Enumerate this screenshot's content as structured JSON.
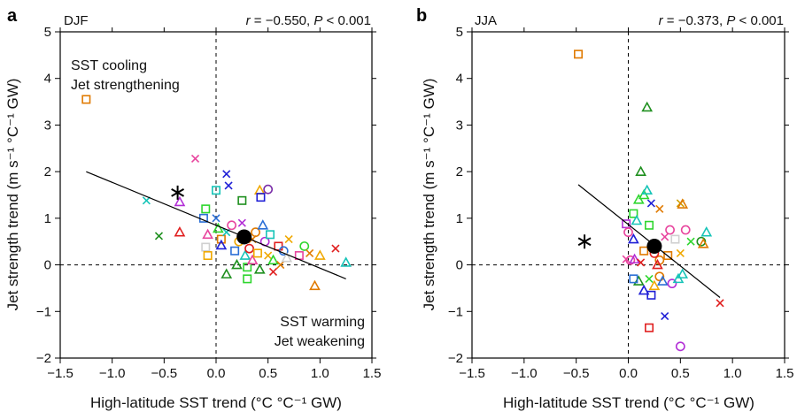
{
  "chart_data": [
    {
      "type": "scatter",
      "panel_label": "a",
      "season": "DJF",
      "stat_r_label": "r",
      "stat_r_value": " = −0.550, ",
      "stat_p_label": "P",
      "stat_p_value": " < 0.001",
      "xlabel": "High-latitude SST trend (°C °C⁻¹ GW)",
      "ylabel": "Jet strength trend (m s⁻¹ °C⁻¹ GW)",
      "xlim": [
        -1.5,
        1.5
      ],
      "ylim": [
        -2,
        5
      ],
      "xticks": [
        "−1.5",
        "−1.0",
        "−0.5",
        "0.0",
        "0.5",
        "1.0",
        "1.5"
      ],
      "yticks": [
        "−2",
        "−1",
        "0",
        "1",
        "2",
        "3",
        "4",
        "5"
      ],
      "annotations": {
        "top_left_1": "SST cooling",
        "top_left_2": "Jet strengthening",
        "bottom_right_1": "SST warming",
        "bottom_right_2": "Jet weakening"
      },
      "regression": [
        [
          -1.25,
          2.0
        ],
        [
          1.25,
          -0.3
        ]
      ],
      "ensemble_mean": [
        0.27,
        0.6
      ],
      "star": [
        -0.37,
        1.55
      ],
      "points": [
        [
          -1.25,
          3.55,
          "sq",
          "#e07a00"
        ],
        [
          -0.67,
          1.38,
          "x",
          "#17c4b8"
        ],
        [
          -0.35,
          1.35,
          "tri",
          "#b22ed6"
        ],
        [
          -0.2,
          2.28,
          "x",
          "#e8459e"
        ],
        [
          -0.12,
          1.0,
          "sq",
          "#2b6fd6"
        ],
        [
          -0.1,
          1.2,
          "sq",
          "#2ed62e"
        ],
        [
          0.0,
          1.6,
          "sq",
          "#17c4b8"
        ],
        [
          0.0,
          1.0,
          "x",
          "#2b6fd6"
        ],
        [
          0.1,
          1.95,
          "x",
          "#1f1fd6"
        ],
        [
          0.12,
          1.7,
          "x",
          "#1f1fd6"
        ],
        [
          0.25,
          1.38,
          "sq",
          "#1e8f1e"
        ],
        [
          0.42,
          1.6,
          "tri",
          "#f0a800"
        ],
        [
          0.5,
          1.62,
          "o",
          "#7a2ea8"
        ],
        [
          0.43,
          1.45,
          "sq",
          "#1f1fd6"
        ],
        [
          -0.55,
          0.62,
          "x",
          "#1e8f1e"
        ],
        [
          -0.35,
          0.7,
          "tri",
          "#e01f1f"
        ],
        [
          -0.08,
          0.65,
          "tri",
          "#e8459e"
        ],
        [
          -0.1,
          0.38,
          "sq",
          "#d0d0d0"
        ],
        [
          -0.08,
          0.2,
          "sq",
          "#f0a800"
        ],
        [
          0.02,
          0.78,
          "tri",
          "#2ed62e"
        ],
        [
          0.05,
          0.55,
          "sq",
          "#e07a00"
        ],
        [
          0.05,
          0.42,
          "tri",
          "#1f1fd6"
        ],
        [
          0.1,
          0.7,
          "x",
          "#17c4b8"
        ],
        [
          0.15,
          0.85,
          "o",
          "#e8459e"
        ],
        [
          0.18,
          0.3,
          "sq",
          "#2b6fd6"
        ],
        [
          0.2,
          0.0,
          "tri",
          "#1e8f1e"
        ],
        [
          0.1,
          -0.2,
          "tri",
          "#1e8f1e"
        ],
        [
          0.22,
          0.5,
          "o",
          "#f0a800"
        ],
        [
          0.25,
          0.9,
          "x",
          "#b22ed6"
        ],
        [
          0.28,
          0.2,
          "tri",
          "#17c4b8"
        ],
        [
          0.3,
          -0.05,
          "sq",
          "#2ed62e"
        ],
        [
          0.32,
          0.35,
          "o",
          "#e01f1f"
        ],
        [
          0.35,
          0.55,
          "x",
          "#e07a00"
        ],
        [
          0.35,
          0.1,
          "tri",
          "#e8459e"
        ],
        [
          0.38,
          0.7,
          "o",
          "#e07a00"
        ],
        [
          0.4,
          0.25,
          "sq",
          "#f0a800"
        ],
        [
          0.42,
          -0.1,
          "tri",
          "#1e8f1e"
        ],
        [
          0.45,
          0.85,
          "tri",
          "#2b6fd6"
        ],
        [
          0.47,
          0.5,
          "o",
          "#b22ed6"
        ],
        [
          0.5,
          0.2,
          "x",
          "#f0a800"
        ],
        [
          0.52,
          0.65,
          "sq",
          "#17c4b8"
        ],
        [
          0.55,
          0.1,
          "tri",
          "#2ed62e"
        ],
        [
          0.6,
          0.4,
          "sq",
          "#e01f1f"
        ],
        [
          0.62,
          0.0,
          "x",
          "#e07a00"
        ],
        [
          0.65,
          0.3,
          "o",
          "#2b6fd6"
        ],
        [
          0.68,
          0.15,
          "tri",
          "#d0d0d0"
        ],
        [
          0.7,
          0.55,
          "x",
          "#f0a800"
        ],
        [
          0.8,
          0.2,
          "sq",
          "#e8459e"
        ],
        [
          0.85,
          0.4,
          "o",
          "#2ed62e"
        ],
        [
          0.9,
          0.25,
          "x",
          "#e07a00"
        ],
        [
          1.0,
          0.2,
          "tri",
          "#f0a800"
        ],
        [
          1.15,
          0.35,
          "x",
          "#e01f1f"
        ],
        [
          1.25,
          0.05,
          "tri",
          "#17c4b8"
        ],
        [
          0.95,
          -0.45,
          "tri",
          "#e07a00"
        ],
        [
          0.3,
          -0.3,
          "sq",
          "#2ed62e"
        ],
        [
          0.55,
          -0.15,
          "x",
          "#e01f1f"
        ]
      ]
    },
    {
      "type": "scatter",
      "panel_label": "b",
      "season": "JJA",
      "stat_r_label": "r",
      "stat_r_value": " = −0.373, ",
      "stat_p_label": "P",
      "stat_p_value": " < 0.001",
      "xlabel": "High-latitude SST trend (°C °C⁻¹ GW)",
      "ylabel": "Jet strength trend (m s⁻¹ °C⁻¹ GW)",
      "xlim": [
        -1.5,
        1.5
      ],
      "ylim": [
        -2,
        5
      ],
      "xticks": [
        "−1.5",
        "−1.0",
        "−0.5",
        "0.0",
        "0.5",
        "1.0",
        "1.5"
      ],
      "yticks": [
        "−2",
        "−1",
        "0",
        "1",
        "2",
        "3",
        "4",
        "5"
      ],
      "regression": [
        [
          -0.48,
          1.72
        ],
        [
          0.88,
          -0.7
        ]
      ],
      "ensemble_mean": [
        0.25,
        0.4
      ],
      "star": [
        -0.42,
        0.5
      ],
      "points": [
        [
          -0.48,
          4.52,
          "sq",
          "#e07a00"
        ],
        [
          0.18,
          3.38,
          "tri",
          "#1e8f1e"
        ],
        [
          0.12,
          2.0,
          "tri",
          "#1e8f1e"
        ],
        [
          0.22,
          1.32,
          "x",
          "#1f1fd6"
        ],
        [
          0.15,
          1.5,
          "tri",
          "#2ed62e"
        ],
        [
          0.18,
          1.6,
          "tri",
          "#17c4b8"
        ],
        [
          0.1,
          1.4,
          "tri",
          "#2ed62e"
        ],
        [
          0.05,
          1.1,
          "sq",
          "#2ed62e"
        ],
        [
          0.08,
          0.95,
          "tri",
          "#17c4b8"
        ],
        [
          0.2,
          0.85,
          "sq",
          "#2ed62e"
        ],
        [
          0.3,
          1.2,
          "x",
          "#e07a00"
        ],
        [
          0.5,
          1.32,
          "x",
          "#d0a000"
        ],
        [
          0.52,
          1.3,
          "tri",
          "#e07a00"
        ],
        [
          -0.02,
          0.88,
          "sq",
          "#b22ed6"
        ],
        [
          0.0,
          0.7,
          "o",
          "#e8459e"
        ],
        [
          0.05,
          0.55,
          "tri",
          "#1f1fd6"
        ],
        [
          0.02,
          0.1,
          "o",
          "#e8459e"
        ],
        [
          0.06,
          0.12,
          "tri",
          "#b22ed6"
        ],
        [
          -0.02,
          0.12,
          "x",
          "#e8459e"
        ],
        [
          0.1,
          -0.35,
          "tri",
          "#1e8f1e"
        ],
        [
          0.05,
          -0.3,
          "sq",
          "#2b6fd6"
        ],
        [
          0.15,
          -0.55,
          "tri",
          "#1f1fd6"
        ],
        [
          0.2,
          -0.3,
          "x",
          "#2ed62e"
        ],
        [
          0.22,
          -0.65,
          "sq",
          "#1f1fd6"
        ],
        [
          0.25,
          -0.45,
          "tri",
          "#f0a800"
        ],
        [
          0.3,
          -0.25,
          "o",
          "#e07a00"
        ],
        [
          0.33,
          -0.35,
          "tri",
          "#2b6fd6"
        ],
        [
          0.35,
          0.6,
          "x",
          "#e8459e"
        ],
        [
          0.38,
          0.2,
          "sq",
          "#e07a00"
        ],
        [
          0.4,
          0.75,
          "o",
          "#e8459e"
        ],
        [
          0.42,
          -0.4,
          "o",
          "#b22ed6"
        ],
        [
          0.45,
          0.55,
          "sq",
          "#d0d0d0"
        ],
        [
          0.48,
          -0.3,
          "tri",
          "#17c4b8"
        ],
        [
          0.5,
          0.25,
          "x",
          "#f0a800"
        ],
        [
          0.52,
          -0.2,
          "tri",
          "#17c4b8"
        ],
        [
          0.55,
          0.75,
          "o",
          "#e8459e"
        ],
        [
          0.6,
          0.5,
          "x",
          "#2ed62e"
        ],
        [
          0.7,
          0.5,
          "o",
          "#1e8f1e"
        ],
        [
          0.72,
          0.45,
          "tri",
          "#e07a00"
        ],
        [
          0.75,
          0.7,
          "tri",
          "#17c4b8"
        ],
        [
          0.2,
          -1.35,
          "sq",
          "#e01f1f"
        ],
        [
          0.35,
          -1.1,
          "x",
          "#1f1fd6"
        ],
        [
          0.5,
          -1.75,
          "o",
          "#b22ed6"
        ],
        [
          0.3,
          0.1,
          "o",
          "#e07a00"
        ],
        [
          0.28,
          0.0,
          "tri",
          "#e01f1f"
        ],
        [
          0.25,
          0.25,
          "o",
          "#e01f1f"
        ],
        [
          0.15,
          0.3,
          "sq",
          "#e07a00"
        ],
        [
          0.12,
          0.05,
          "x",
          "#e01f1f"
        ],
        [
          0.88,
          -0.82,
          "x",
          "#e01f1f"
        ]
      ]
    }
  ]
}
